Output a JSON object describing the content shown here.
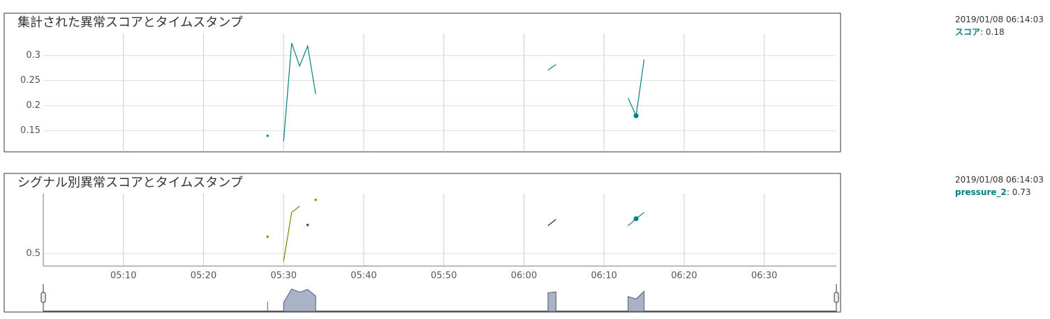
{
  "chart_data": [
    {
      "type": "line",
      "title": "集計された異常スコアとタイムスタンプ",
      "x": [
        "05:28",
        "05:29",
        "05:30",
        "05:31",
        "05:32",
        "05:33",
        "05:34",
        "05:35",
        "06:03",
        "06:04",
        "06:05",
        "06:13",
        "06:14",
        "06:15"
      ],
      "series": [
        {
          "name": "スコア",
          "color": "#008080",
          "values": [
            0.14,
            null,
            0.129,
            0.325,
            0.279,
            0.319,
            0.223,
            null,
            0.271,
            0.282,
            null,
            0.215,
            0.18,
            0.292
          ]
        }
      ],
      "xlim": [
        "05:00",
        "06:39"
      ],
      "xticks": [
        "05:10",
        "05:20",
        "05:30",
        "05:40",
        "05:50",
        "06:00",
        "06:10",
        "06:20",
        "06:30"
      ],
      "xtick_labels": false,
      "ylim": [
        0.108,
        0.344
      ],
      "yticks": [
        0.15,
        0.2,
        0.25,
        0.3
      ],
      "grid": true,
      "legend": {
        "time": "2019/01/08 06:14:03",
        "series": 0
      }
    },
    {
      "type": "line",
      "title": "シグナル別異常スコアとタイムスタンプ",
      "x": [
        "05:28",
        "05:29",
        "05:30",
        "05:31",
        "05:32",
        "05:33",
        "05:34",
        "05:35",
        "06:03",
        "06:04",
        "06:05",
        "06:13",
        "06:14",
        "06:15"
      ],
      "series": [
        {
          "color": "#5f8f00",
          "values": [
            0.611,
            null,
            0.449,
            0.772,
            0.813,
            null,
            0.855,
            null,
            null,
            null,
            null,
            null,
            null,
            null
          ]
        },
        {
          "color": "#800080",
          "values": [
            null,
            null,
            null,
            null,
            null,
            0.689,
            null,
            null,
            null,
            null,
            null,
            null,
            null,
            null
          ]
        },
        {
          "color": "#191970",
          "values": [
            null,
            null,
            null,
            null,
            null,
            null,
            null,
            null,
            0.684,
            0.726,
            null,
            null,
            null,
            null
          ]
        },
        {
          "name": "pressure_2",
          "color": "#008080",
          "values": [
            null,
            null,
            null,
            null,
            null,
            null,
            null,
            null,
            null,
            null,
            null,
            0.684,
            0.73,
            0.772
          ]
        }
      ],
      "xlim": [
        "05:00",
        "06:39"
      ],
      "xticks": [
        "05:10",
        "05:20",
        "05:30",
        "05:40",
        "05:50",
        "06:00",
        "06:10",
        "06:20",
        "06:30"
      ],
      "xtick_labels": true,
      "ylim": [
        0.417,
        0.896
      ],
      "yticks": [
        0.5
      ],
      "grid": true,
      "legend": {
        "time": "2019/01/08 06:14:03",
        "series": 3
      }
    }
  ]
}
